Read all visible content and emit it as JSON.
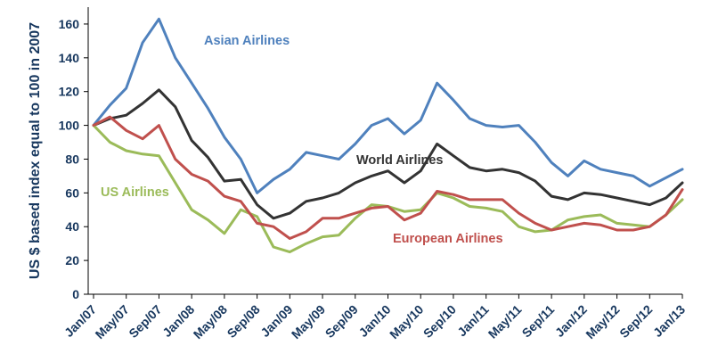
{
  "chart_data": {
    "type": "line",
    "title": "",
    "xlabel": "",
    "ylabel": "US $ based index equal to 100 in 2007",
    "ylim": [
      0,
      170
    ],
    "yticks": [
      0,
      20,
      40,
      60,
      80,
      100,
      120,
      140,
      160
    ],
    "x_tick_labels": [
      "Jan/07",
      "May/07",
      "Sep/07",
      "Jan/08",
      "May/08",
      "Sep/08",
      "Jan/09",
      "May/09",
      "Sep/09",
      "Jan/10",
      "May/10",
      "Sep/10",
      "Jan/11",
      "May/11",
      "Sep/11",
      "Jan/12",
      "May/12",
      "Sep/12",
      "Jan/13"
    ],
    "months_from_jan07_to_jan13_step_2": true,
    "grid": false,
    "legend": "inline labels",
    "series": [
      {
        "name": "Asian Airlines",
        "color": "#4F81BD",
        "values": [
          100,
          112,
          122,
          149,
          163,
          140,
          125,
          110,
          93,
          80,
          60,
          68,
          74,
          84,
          82,
          80,
          89,
          100,
          104,
          95,
          103,
          125,
          115,
          104,
          100,
          99,
          100,
          90,
          78,
          70,
          79,
          74,
          72,
          70,
          64,
          69,
          74
        ]
      },
      {
        "name": "World Airlines",
        "color": "#333333",
        "values": [
          100,
          104,
          106,
          113,
          121,
          111,
          91,
          81,
          67,
          68,
          53,
          45,
          48,
          55,
          57,
          60,
          66,
          70,
          73,
          66,
          73,
          89,
          82,
          75,
          73,
          74,
          72,
          67,
          58,
          56,
          60,
          59,
          57,
          55,
          53,
          57,
          66
        ]
      },
      {
        "name": "US Airlines",
        "color": "#9BBB59",
        "values": [
          100,
          90,
          85,
          83,
          82,
          66,
          50,
          44,
          36,
          50,
          46,
          28,
          25,
          30,
          34,
          35,
          45,
          53,
          52,
          49,
          50,
          60,
          57,
          52,
          51,
          49,
          40,
          37,
          38,
          44,
          46,
          47,
          42,
          41,
          40,
          47,
          56
        ]
      },
      {
        "name": "European Airlines",
        "color": "#C0504D",
        "values": [
          100,
          105,
          97,
          92,
          100,
          80,
          71,
          67,
          58,
          55,
          42,
          40,
          33,
          37,
          45,
          45,
          48,
          51,
          52,
          44,
          48,
          61,
          59,
          56,
          56,
          56,
          48,
          42,
          38,
          40,
          42,
          41,
          38,
          38,
          40,
          47,
          62
        ]
      }
    ]
  }
}
